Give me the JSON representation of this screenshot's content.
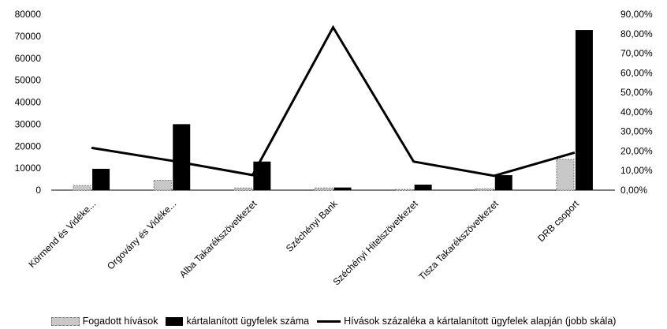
{
  "chart_data": {
    "type": "bar",
    "title": "",
    "categories": [
      "Körmend és Vidéke...",
      "Orgovány és Vidéke...",
      "Alba Takarékszövetkezet",
      "Széchényi Bank",
      "Széchényi Hitelszövetkezet",
      "Tisza Takarékszövetkezet",
      "DRB csoport"
    ],
    "series": [
      {
        "name": "Fogadott hívások",
        "kind": "bar",
        "axis": "left",
        "color": "#c8c8c8",
        "values": [
          2100,
          4500,
          1000,
          1000,
          300,
          600,
          14000
        ]
      },
      {
        "name": "kártalanított ügyfelek száma",
        "kind": "bar",
        "axis": "left",
        "color": "#000000",
        "values": [
          9700,
          30000,
          13000,
          1200,
          2500,
          6800,
          72800
        ]
      },
      {
        "name": "Hívások százaléka a kártalanított ügyfelek alapján (jobb skála)",
        "kind": "line",
        "axis": "right",
        "color": "#000000",
        "values": [
          0.2165,
          0.15,
          0.077,
          0.833,
          0.146,
          0.0735,
          0.1923
        ]
      }
    ],
    "left_axis": {
      "min": 0,
      "max": 80000,
      "step": 10000,
      "tick_labels": [
        "0",
        "10000",
        "20000",
        "30000",
        "40000",
        "50000",
        "60000",
        "70000",
        "80000"
      ]
    },
    "right_axis": {
      "min": 0,
      "max": 0.9,
      "step": 0.1,
      "tick_labels": [
        "0,00%",
        "10,00%",
        "20,00%",
        "30,00%",
        "40,00%",
        "50,00%",
        "60,00%",
        "70,00%",
        "80,00%",
        "90,00%"
      ]
    },
    "grid": false,
    "legend_position": "bottom"
  }
}
